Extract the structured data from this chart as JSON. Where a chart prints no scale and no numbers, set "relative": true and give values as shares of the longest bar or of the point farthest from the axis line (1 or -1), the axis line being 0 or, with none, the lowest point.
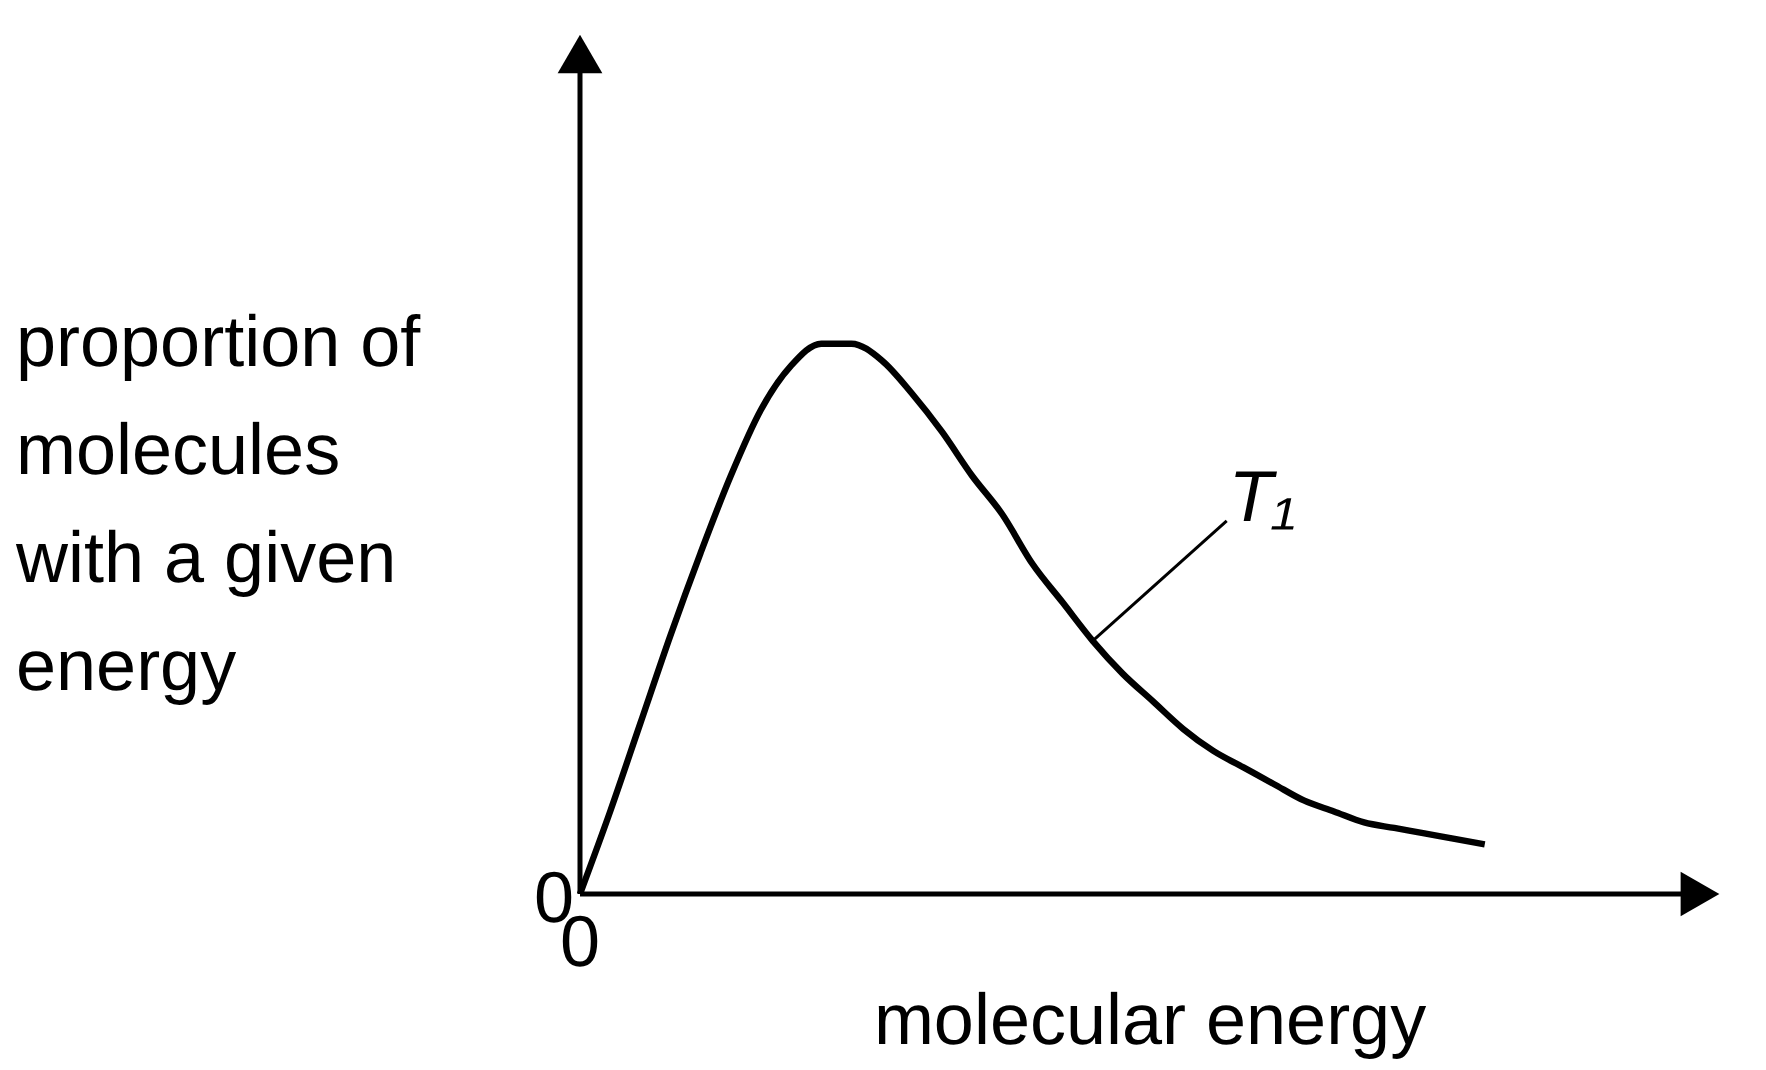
{
  "chart_data": {
    "type": "line",
    "relative": true,
    "categories": [
      null,
      null,
      null,
      null,
      null,
      null,
      null,
      null,
      null,
      null,
      null,
      null,
      null,
      null,
      null,
      null,
      null,
      null,
      null,
      null,
      null,
      null,
      null,
      null,
      null,
      null,
      null,
      null,
      null,
      null,
      null
    ],
    "series": [
      {
        "name": "T₁",
        "color": "#000000",
        "values": [
          0,
          0.15,
          0.31,
          0.47,
          0.62,
          0.76,
          0.88,
          0.96,
          1.0,
          1.0,
          0.97,
          0.91,
          0.84,
          0.76,
          0.69,
          0.6,
          0.53,
          0.46,
          0.4,
          0.35,
          0.3,
          0.26,
          0.23,
          0.2,
          0.17,
          0.15,
          0.13,
          0.12,
          0.11,
          0.1,
          0.09
        ]
      }
    ],
    "xlabel": "molecular energy",
    "ylabel": "proportion of molecules with a given energy",
    "annotations": [
      "0",
      "0"
    ],
    "grid": false,
    "legend": false,
    "marker": "none",
    "line_style": "solid"
  }
}
